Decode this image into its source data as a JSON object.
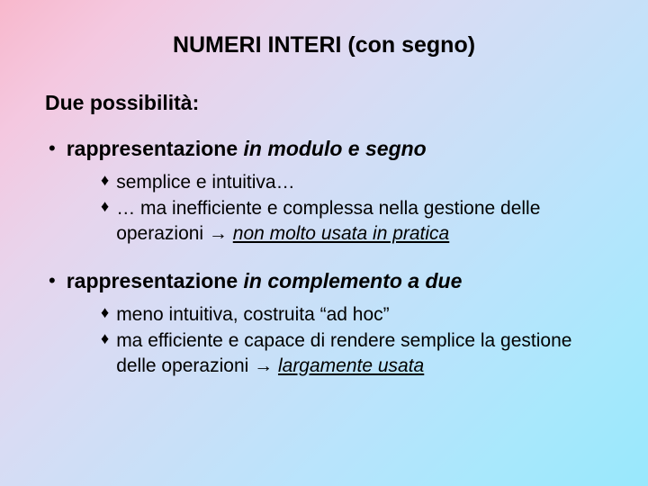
{
  "title": "NUMERI INTERI (con segno)",
  "subtitle": "Due possibilità:",
  "items": [
    {
      "head_plain": "rappresentazione ",
      "head_italic": "in modulo e segno",
      "subs": [
        {
          "html": "semplice e intuitiva…"
        },
        {
          "html": "… ma inefficiente e complessa nella gestione delle operazioni <span class=\"arrow\">→</span> <span class=\"ul-it\">non molto usata in pratica</span>"
        }
      ]
    },
    {
      "head_plain": "rappresentazione ",
      "head_italic": "in complemento a due",
      "subs": [
        {
          "html": "meno intuitiva, costruita “ad hoc”"
        },
        {
          "html": "ma efficiente e capace di rendere semplice la gestione delle operazioni <span class=\"arrow\">→</span> <span class=\"ul-it\">largamente usata</span>"
        }
      ]
    }
  ],
  "style": {
    "l1_bullet": "•",
    "l2_bullet": "♦",
    "colors": {
      "text": "#000000",
      "bg_gradient_start": "#f8b8cc",
      "bg_gradient_end": "#98e8fc"
    },
    "fontsizes": {
      "title": 25,
      "subtitle": 23,
      "l1": 23,
      "l2": 21
    }
  }
}
